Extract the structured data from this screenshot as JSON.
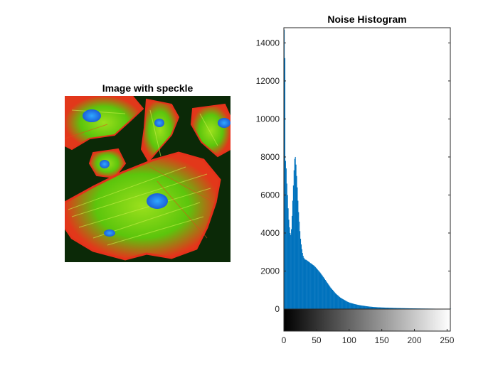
{
  "figure": {
    "left_panel": {
      "title": "Image with speckle",
      "image_description_icon": "fluorescence-cells-image"
    },
    "right_panel": {
      "title": "Noise Histogram"
    }
  },
  "chart_data": {
    "type": "bar",
    "title": "Noise Histogram",
    "xlabel": "",
    "ylabel": "",
    "xlim": [
      0,
      255
    ],
    "ylim": [
      0,
      14800
    ],
    "x_ticks": [
      0,
      50,
      100,
      150,
      200,
      250
    ],
    "y_ticks": [
      0,
      2000,
      4000,
      6000,
      8000,
      10000,
      12000,
      14000
    ],
    "grid": false,
    "colorbar": "grayscale gradient below x-axis from 0 (black) to 255 (white)",
    "bar_color": "#0072BD",
    "bins": [
      [
        0,
        14700
      ],
      [
        1,
        13200
      ],
      [
        2,
        7800
      ],
      [
        3,
        7400
      ],
      [
        4,
        6600
      ],
      [
        5,
        6000
      ],
      [
        6,
        5300
      ],
      [
        7,
        4700
      ],
      [
        8,
        4300
      ],
      [
        9,
        4000
      ],
      [
        10,
        3900
      ],
      [
        11,
        4200
      ],
      [
        12,
        4900
      ],
      [
        13,
        5700
      ],
      [
        14,
        6500
      ],
      [
        15,
        7300
      ],
      [
        16,
        7900
      ],
      [
        17,
        8000
      ],
      [
        18,
        7600
      ],
      [
        19,
        7000
      ],
      [
        20,
        6400
      ],
      [
        21,
        5700
      ],
      [
        22,
        5100
      ],
      [
        23,
        4600
      ],
      [
        24,
        4100
      ],
      [
        25,
        3700
      ],
      [
        26,
        3400
      ],
      [
        27,
        3150
      ],
      [
        28,
        2950
      ],
      [
        29,
        2800
      ],
      [
        30,
        2700
      ],
      [
        31,
        2650
      ],
      [
        32,
        2600
      ],
      [
        33,
        2600
      ],
      [
        34,
        2580
      ],
      [
        35,
        2550
      ],
      [
        36,
        2530
      ],
      [
        37,
        2500
      ],
      [
        38,
        2480
      ],
      [
        39,
        2450
      ],
      [
        40,
        2420
      ],
      [
        41,
        2400
      ],
      [
        42,
        2380
      ],
      [
        43,
        2350
      ],
      [
        44,
        2320
      ],
      [
        45,
        2300
      ],
      [
        46,
        2270
      ],
      [
        47,
        2240
      ],
      [
        48,
        2200
      ],
      [
        49,
        2160
      ],
      [
        50,
        2120
      ],
      [
        51,
        2080
      ],
      [
        52,
        2040
      ],
      [
        53,
        2000
      ],
      [
        54,
        1960
      ],
      [
        55,
        1920
      ],
      [
        56,
        1870
      ],
      [
        57,
        1820
      ],
      [
        58,
        1780
      ],
      [
        59,
        1730
      ],
      [
        60,
        1680
      ],
      [
        61,
        1630
      ],
      [
        62,
        1580
      ],
      [
        63,
        1530
      ],
      [
        64,
        1480
      ],
      [
        65,
        1430
      ],
      [
        66,
        1380
      ],
      [
        67,
        1330
      ],
      [
        68,
        1280
      ],
      [
        69,
        1230
      ],
      [
        70,
        1180
      ],
      [
        71,
        1130
      ],
      [
        72,
        1090
      ],
      [
        73,
        1050
      ],
      [
        74,
        1010
      ],
      [
        75,
        970
      ],
      [
        76,
        930
      ],
      [
        77,
        890
      ],
      [
        78,
        850
      ],
      [
        79,
        810
      ],
      [
        80,
        780
      ],
      [
        81,
        750
      ],
      [
        82,
        720
      ],
      [
        83,
        690
      ],
      [
        84,
        660
      ],
      [
        85,
        630
      ],
      [
        86,
        600
      ],
      [
        87,
        580
      ],
      [
        88,
        560
      ],
      [
        89,
        540
      ],
      [
        90,
        520
      ],
      [
        91,
        500
      ],
      [
        92,
        480
      ],
      [
        93,
        460
      ],
      [
        94,
        440
      ],
      [
        95,
        420
      ],
      [
        96,
        400
      ],
      [
        97,
        385
      ],
      [
        98,
        370
      ],
      [
        99,
        355
      ],
      [
        100,
        340
      ],
      [
        102,
        320
      ],
      [
        104,
        300
      ],
      [
        106,
        280
      ],
      [
        108,
        260
      ],
      [
        110,
        245
      ],
      [
        112,
        230
      ],
      [
        114,
        215
      ],
      [
        116,
        200
      ],
      [
        118,
        190
      ],
      [
        120,
        180
      ],
      [
        122,
        170
      ],
      [
        124,
        160
      ],
      [
        126,
        150
      ],
      [
        128,
        140
      ],
      [
        130,
        132
      ],
      [
        132,
        125
      ],
      [
        134,
        118
      ],
      [
        136,
        112
      ],
      [
        138,
        106
      ],
      [
        140,
        100
      ],
      [
        145,
        90
      ],
      [
        150,
        82
      ],
      [
        155,
        75
      ],
      [
        160,
        68
      ],
      [
        165,
        62
      ],
      [
        170,
        57
      ],
      [
        175,
        52
      ],
      [
        180,
        48
      ],
      [
        185,
        44
      ],
      [
        190,
        40
      ],
      [
        195,
        37
      ],
      [
        200,
        34
      ],
      [
        205,
        31
      ],
      [
        210,
        28
      ],
      [
        215,
        26
      ],
      [
        220,
        24
      ],
      [
        225,
        22
      ],
      [
        230,
        20
      ],
      [
        235,
        18
      ],
      [
        240,
        17
      ],
      [
        245,
        16
      ],
      [
        250,
        15
      ],
      [
        255,
        14
      ]
    ]
  }
}
